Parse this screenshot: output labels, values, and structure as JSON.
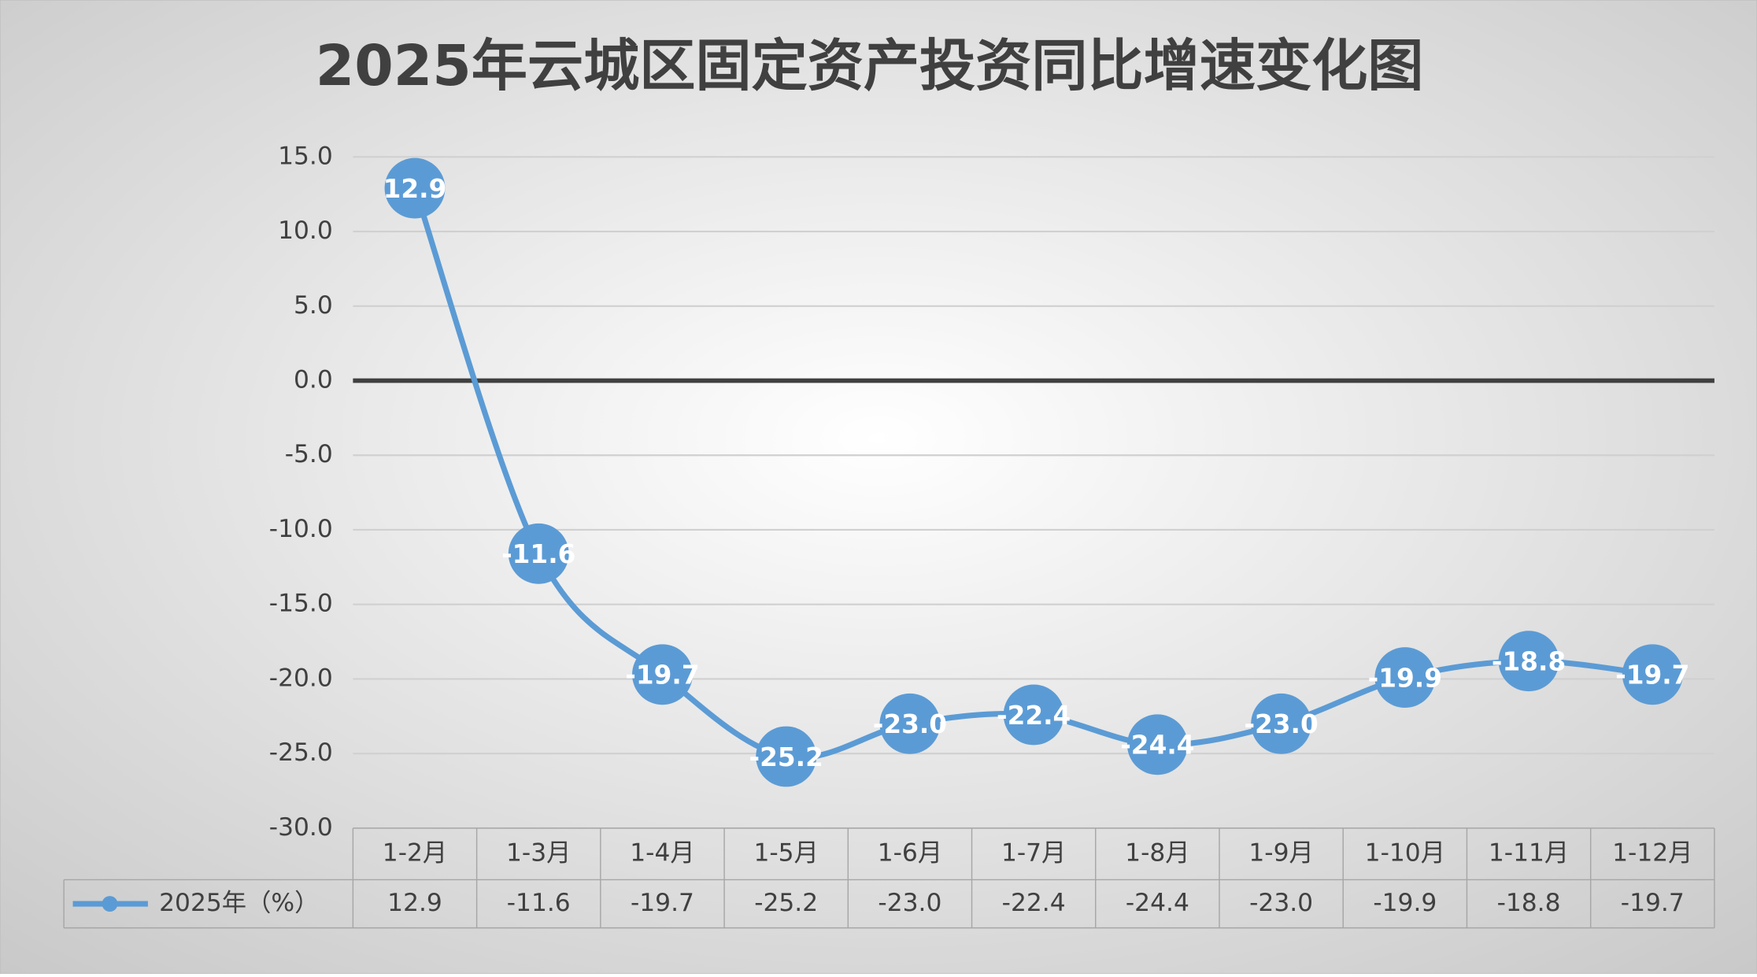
{
  "chart_data": {
    "type": "line",
    "title": "2025年云城区固定资产投资同比增速变化图",
    "categories": [
      "1-2月",
      "1-3月",
      "1-4月",
      "1-5月",
      "1-6月",
      "1-7月",
      "1-8月",
      "1-9月",
      "1-10月",
      "1-11月",
      "1-12月"
    ],
    "series": [
      {
        "name": "2025年（%）",
        "color": "#5b9bd5",
        "values": [
          12.9,
          -11.6,
          -19.7,
          -25.2,
          -23,
          -22.4,
          -24.4,
          -23,
          -19.9,
          -18.8,
          -19.7
        ],
        "value_labels": [
          "12.9",
          "-11.6",
          "-19.7",
          "-25.2",
          "-23.0",
          "-22.4",
          "-24.4",
          "-23.0",
          "-19.9",
          "-18.8",
          "-19.7"
        ]
      }
    ],
    "ylim": [
      -30,
      15
    ],
    "yticks": [
      {
        "value": 15,
        "label": "15.0"
      },
      {
        "value": 10,
        "label": "10.0"
      },
      {
        "value": 5,
        "label": "5.0"
      },
      {
        "value": 0,
        "label": "0.0"
      },
      {
        "value": -5,
        "label": "-5.0"
      },
      {
        "value": -10,
        "label": "-10.0"
      },
      {
        "value": -15,
        "label": "-15.0"
      },
      {
        "value": -20,
        "label": "-20.0"
      },
      {
        "value": -25,
        "label": "-25.0"
      },
      {
        "value": -30,
        "label": "-30.0"
      }
    ],
    "grid": true,
    "data_table": true
  }
}
